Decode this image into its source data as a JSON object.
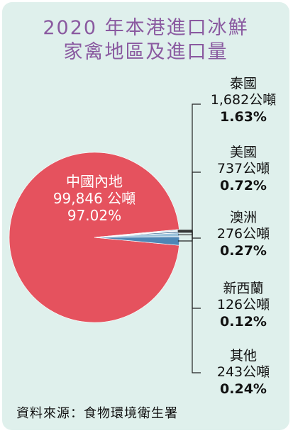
{
  "title_line1": "2020 年本港進口冰鮮",
  "title_line2": "家禽地區及進口量",
  "source": "資料來源：食物環境衛生署",
  "chart_data": {
    "type": "pie",
    "title": "2020 年本港進口冰鮮家禽地區及進口量",
    "unit": "公噸",
    "slices": [
      {
        "name": "中國內地",
        "value": 99846,
        "value_label": "99,846 公噸",
        "percent": 97.02,
        "percent_label": "97.02%",
        "color": "#e5525e"
      },
      {
        "name": "泰國",
        "value": 1682,
        "value_label": "1,682公噸",
        "percent": 1.63,
        "percent_label": "1.63%",
        "color": "#4f86b5"
      },
      {
        "name": "美國",
        "value": 737,
        "value_label": "737公噸",
        "percent": 0.72,
        "percent_label": "0.72%",
        "color": "#9cc3dc"
      },
      {
        "name": "澳洲",
        "value": 276,
        "value_label": "276公噸",
        "percent": 0.27,
        "percent_label": "0.27%",
        "color": "#2f5f8a"
      },
      {
        "name": "新西蘭",
        "value": 126,
        "value_label": "126公噸",
        "percent": 0.12,
        "percent_label": "0.12%",
        "color": "#7aa8c9"
      },
      {
        "name": "其他",
        "value": 243,
        "value_label": "243公噸",
        "percent": 0.24,
        "percent_label": "0.24%",
        "color": "#c5dce9"
      }
    ]
  }
}
